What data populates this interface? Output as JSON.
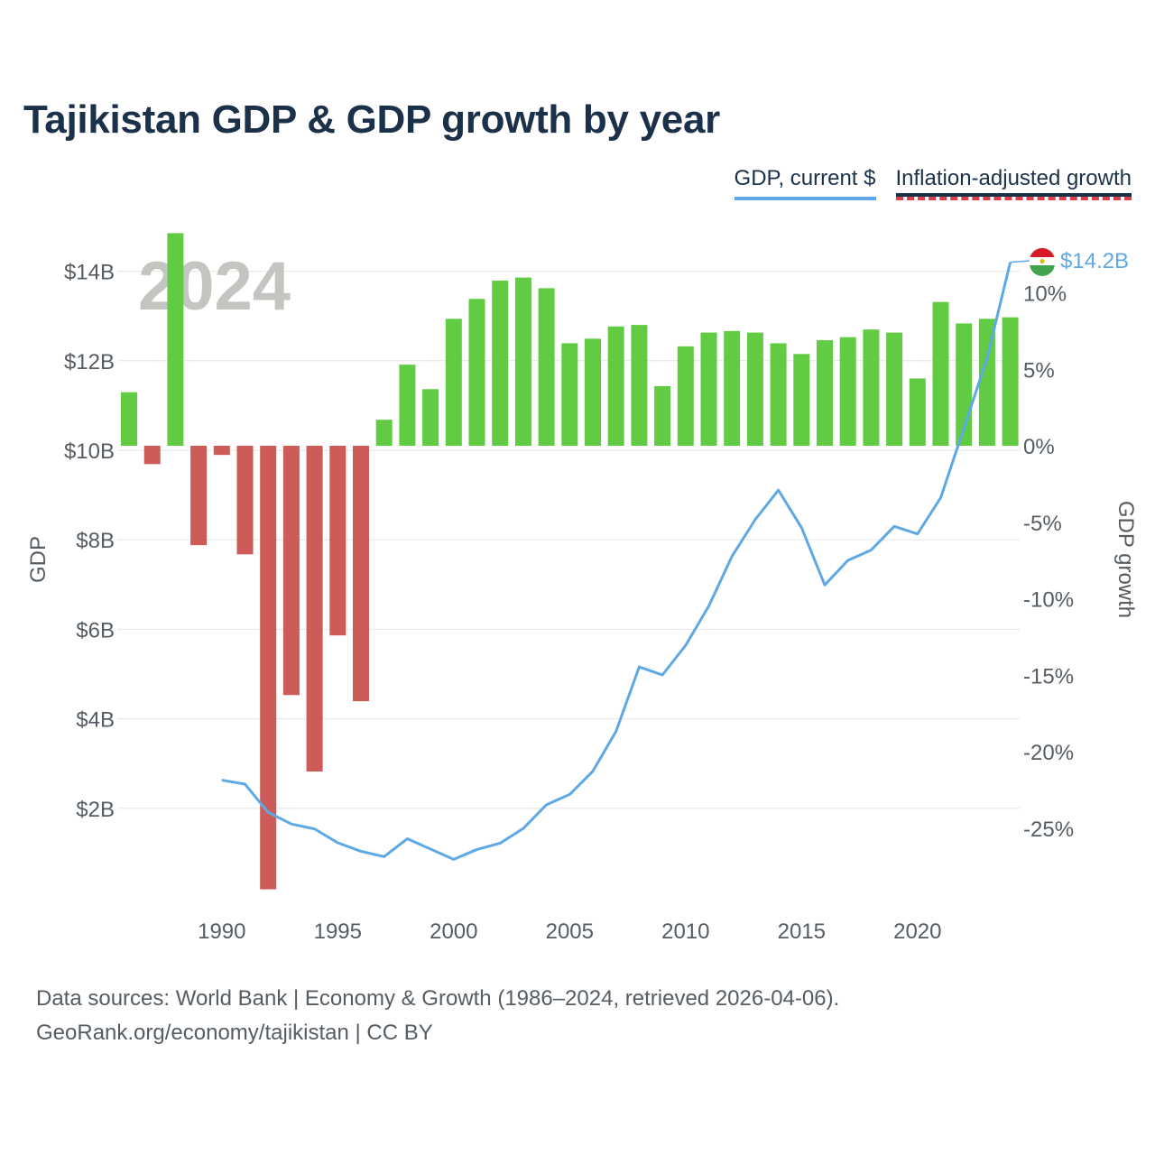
{
  "title": "Tajikistan GDP & GDP growth by year",
  "legend": {
    "gdp_label": "GDP, current $",
    "growth_label": "Inflation-adjusted growth"
  },
  "year_watermark": "2024",
  "end_label": "$14.2B",
  "footer": {
    "line1": "Data sources: World Bank | Economy & Growth (1986–2024, retrieved 2026-04-06).",
    "line2": "GeoRank.org/economy/tajikistan | CC BY"
  },
  "colors": {
    "gdp_line": "#5ea8e6",
    "positive": "#61cc43",
    "negative": "#cd5b58",
    "grid": "#e6e6e6",
    "axis_text": "#555c63",
    "watermark": "#c3c5c0"
  },
  "chart_data": {
    "type": "bar+line",
    "title": "Tajikistan GDP & GDP growth by year",
    "ylabel_left": "GDP",
    "ylabel_right": "GDP growth",
    "ylim_left": [
      0,
      14
    ],
    "ylim_right": [
      -30,
      14
    ],
    "x_ticks": [
      1990,
      1995,
      2000,
      2005,
      2010,
      2015,
      2020
    ],
    "y_ticks_left": [
      {
        "value": 2,
        "label": "$2B"
      },
      {
        "value": 4,
        "label": "$4B"
      },
      {
        "value": 6,
        "label": "$6B"
      },
      {
        "value": 8,
        "label": "$8B"
      },
      {
        "value": 10,
        "label": "$10B"
      },
      {
        "value": 12,
        "label": "$12B"
      },
      {
        "value": 14,
        "label": "$14B"
      }
    ],
    "y_ticks_right": [
      {
        "value": 10,
        "label": "10%"
      },
      {
        "value": 5,
        "label": "5%"
      },
      {
        "value": 0,
        "label": "0%"
      },
      {
        "value": -5,
        "label": "-5%"
      },
      {
        "value": -10,
        "label": "-10%"
      },
      {
        "value": -15,
        "label": "-15%"
      },
      {
        "value": -20,
        "label": "-20%"
      },
      {
        "value": -25,
        "label": "-25%"
      }
    ],
    "series": [
      {
        "name": "Inflation-adjusted growth",
        "unit": "%",
        "type": "bar",
        "x": [
          1986,
          1987,
          1988,
          1989,
          1990,
          1991,
          1992,
          1993,
          1994,
          1995,
          1996,
          1997,
          1998,
          1999,
          2000,
          2001,
          2002,
          2003,
          2004,
          2005,
          2006,
          2007,
          2008,
          2009,
          2010,
          2011,
          2012,
          2013,
          2014,
          2015,
          2016,
          2017,
          2018,
          2019,
          2020,
          2021,
          2022,
          2023,
          2024
        ],
        "values": [
          3.5,
          -1.2,
          13.9,
          -6.5,
          -0.6,
          -7.1,
          -29,
          -16.3,
          -21.3,
          -12.4,
          -16.7,
          1.7,
          5.3,
          3.7,
          8.3,
          9.6,
          10.8,
          11.0,
          10.3,
          6.7,
          7.0,
          7.8,
          7.9,
          3.9,
          6.5,
          7.4,
          7.5,
          7.4,
          6.7,
          6.0,
          6.9,
          7.1,
          7.6,
          7.4,
          4.4,
          9.4,
          8.0,
          8.3,
          8.4
        ]
      },
      {
        "name": "GDP, current $",
        "unit": "USD billions",
        "type": "line",
        "x": [
          1990,
          1991,
          1992,
          1993,
          1994,
          1995,
          1996,
          1997,
          1998,
          1999,
          2000,
          2001,
          2002,
          2003,
          2004,
          2005,
          2006,
          2007,
          2008,
          2009,
          2010,
          2011,
          2012,
          2013,
          2014,
          2015,
          2016,
          2017,
          2018,
          2019,
          2020,
          2021,
          2022,
          2023,
          2024
        ],
        "values": [
          2.63,
          2.54,
          1.91,
          1.65,
          1.54,
          1.23,
          1.04,
          0.92,
          1.32,
          1.09,
          0.86,
          1.08,
          1.22,
          1.55,
          2.08,
          2.31,
          2.83,
          3.72,
          5.16,
          4.98,
          5.64,
          6.52,
          7.63,
          8.45,
          9.11,
          8.27,
          6.99,
          7.54,
          7.77,
          8.3,
          8.13,
          8.94,
          10.49,
          12.06,
          14.2
        ]
      }
    ]
  }
}
